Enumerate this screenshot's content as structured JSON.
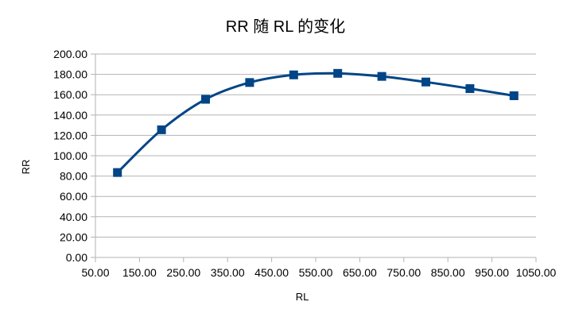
{
  "chart_data": {
    "type": "scatter",
    "title": "RR 随 RL 的变化",
    "xlabel": "RL",
    "ylabel": "RR",
    "xlim": [
      50,
      1050
    ],
    "ylim": [
      0,
      200
    ],
    "x_ticks": [
      "50.00",
      "150.00",
      "250.00",
      "350.00",
      "450.00",
      "550.00",
      "650.00",
      "750.00",
      "850.00",
      "950.00",
      "1050.00"
    ],
    "y_ticks": [
      "0.00",
      "20.00",
      "40.00",
      "60.00",
      "80.00",
      "100.00",
      "120.00",
      "140.00",
      "160.00",
      "180.00",
      "200.00"
    ],
    "grid": "horizontal",
    "legend": "none",
    "smooth": true,
    "series": [
      {
        "color": "#004586",
        "marker": "square",
        "x": [
          100,
          200,
          300,
          400,
          500,
          600,
          700,
          800,
          900,
          1000
        ],
        "y": [
          83.5,
          125.5,
          155.5,
          172,
          179.5,
          181,
          178,
          172.5,
          166,
          159
        ]
      }
    ]
  }
}
